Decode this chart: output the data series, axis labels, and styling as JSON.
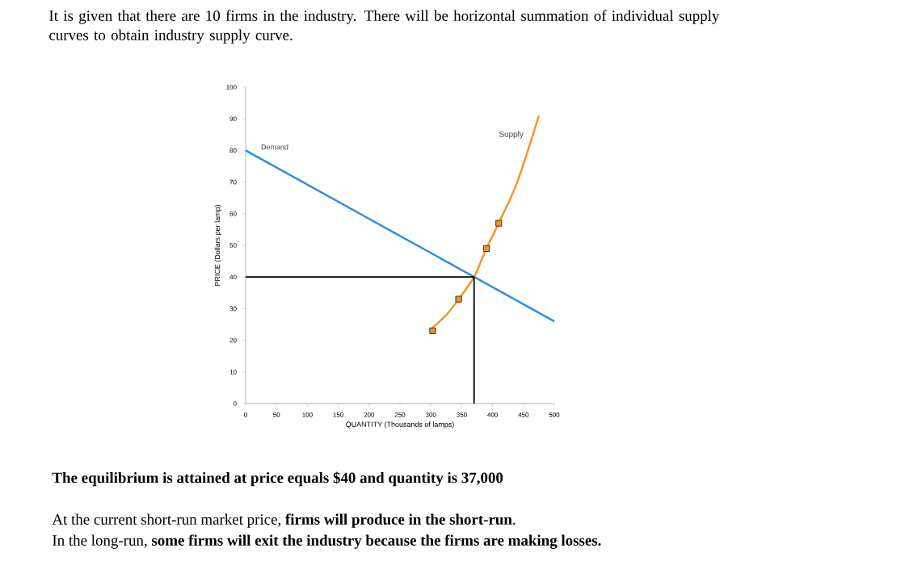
{
  "chart_data": {
    "type": "line",
    "title": "It is given that there are 10 firms in the industry. There will be horizontal summation of individual supply curves to obtain industry supply curve.",
    "xlabel": "QUANTITY (Thousands of lamps)",
    "ylabel": "PRICE (Dollars per lamp)",
    "xlim": [
      0,
      500
    ],
    "ylim": [
      0,
      100
    ],
    "xticks": [
      0,
      50,
      100,
      150,
      200,
      250,
      300,
      350,
      400,
      450,
      500
    ],
    "yticks": [
      0,
      10,
      20,
      30,
      40,
      50,
      60,
      70,
      80,
      90,
      100
    ],
    "grid": false,
    "series": [
      {
        "name": "Demand",
        "color": "#2b8ce8",
        "x": [
          0,
          500
        ],
        "values": [
          80,
          26
        ]
      },
      {
        "name": "Supply",
        "color": "#f5921e",
        "x": [
          303,
          325,
          345,
          370,
          390,
          410,
          440,
          475
        ],
        "values": [
          24,
          28,
          33,
          40,
          49,
          57,
          70,
          91
        ]
      },
      {
        "type": "scatter",
        "color": "#f5921e",
        "marker": "square",
        "x": [
          303,
          345,
          390,
          410
        ],
        "values": [
          23,
          33,
          49,
          57
        ]
      },
      {
        "color": "#000000",
        "x": [
          0,
          370,
          370
        ],
        "values": [
          40,
          40,
          0
        ]
      }
    ],
    "annotations": [
      "The equilibrium is attained at price equals $40 and quantity is 37,000",
      "At the current short-run market price, **firms will produce in the short-run**.",
      "In the long-run, **some firms will exit the industry because the firms are making losses.**"
    ]
  }
}
